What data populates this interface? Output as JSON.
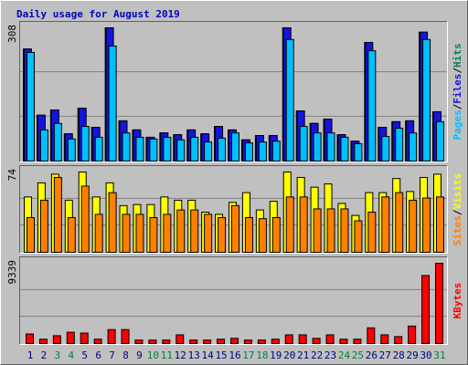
{
  "chart_data": [
    {
      "type": "bar",
      "title": "Daily usage for August 2019",
      "legend_separator": "/",
      "ylim": [
        0,
        308
      ],
      "yticks": [
        308
      ],
      "series": [
        {
          "name": "Hits",
          "color": "#00805c",
          "values": [
            259,
            106,
            118,
            63,
            122,
            78,
            308,
            93,
            72,
            55,
            65,
            61,
            72,
            63,
            80,
            72,
            49,
            59,
            59,
            308,
            116,
            87,
            97,
            61,
            46,
            274,
            78,
            91,
            93,
            298,
            114
          ]
        },
        {
          "name": "Files",
          "color": "#1414e0",
          "values": [
            259,
            106,
            118,
            63,
            122,
            78,
            308,
            93,
            72,
            55,
            65,
            61,
            72,
            63,
            80,
            72,
            49,
            59,
            59,
            308,
            116,
            87,
            97,
            61,
            46,
            274,
            78,
            91,
            93,
            298,
            114
          ]
        },
        {
          "name": "Pages",
          "color": "#00bfff",
          "values": [
            251,
            72,
            87,
            51,
            80,
            55,
            266,
            65,
            55,
            51,
            55,
            49,
            55,
            44,
            53,
            65,
            42,
            44,
            46,
            281,
            80,
            65,
            65,
            55,
            40,
            255,
            57,
            76,
            65,
            281,
            91
          ]
        }
      ]
    },
    {
      "type": "bar",
      "legend_separator": "/",
      "ylim": [
        0,
        74
      ],
      "yticks": [
        74
      ],
      "series": [
        {
          "name": "Visits",
          "color": "#ffff00",
          "values": [
            51,
            64,
            72,
            48,
            74,
            51,
            64,
            43,
            44,
            44,
            51,
            48,
            48,
            37,
            35,
            46,
            55,
            39,
            47,
            74,
            69,
            60,
            63,
            45,
            34,
            55,
            55,
            68,
            56,
            69,
            72
          ]
        },
        {
          "name": "Sites",
          "color": "#ff8000",
          "values": [
            32,
            48,
            69,
            32,
            61,
            35,
            55,
            35,
            35,
            32,
            35,
            39,
            39,
            35,
            32,
            43,
            32,
            31,
            32,
            51,
            51,
            40,
            40,
            40,
            29,
            37,
            51,
            55,
            48,
            50,
            51
          ]
        }
      ]
    },
    {
      "type": "bar",
      "ylim": [
        0,
        9339
      ],
      "yticks": [
        9339
      ],
      "categories": [
        "1",
        "2",
        "3",
        "4",
        "5",
        "6",
        "7",
        "8",
        "9",
        "10",
        "11",
        "12",
        "13",
        "14",
        "15",
        "16",
        "17",
        "18",
        "19",
        "20",
        "21",
        "22",
        "23",
        "24",
        "25",
        "26",
        "27",
        "28",
        "29",
        "30",
        "31"
      ],
      "category_colors": [
        "#000080",
        "#000080",
        "#008040",
        "#008040",
        "#000080",
        "#000080",
        "#000080",
        "#000080",
        "#000080",
        "#008040",
        "#008040",
        "#000080",
        "#000080",
        "#000080",
        "#000080",
        "#000080",
        "#008040",
        "#008040",
        "#000080",
        "#000080",
        "#000080",
        "#000080",
        "#000080",
        "#008040",
        "#008040",
        "#000080",
        "#000080",
        "#000080",
        "#000080",
        "#000080",
        "#008040"
      ],
      "series": [
        {
          "name": "KBytes",
          "color": "#ff0000",
          "values": [
            1117,
            508,
            914,
            1320,
            1218,
            508,
            1624,
            1624,
            406,
            406,
            406,
            1015,
            406,
            406,
            508,
            609,
            406,
            406,
            508,
            1015,
            1015,
            609,
            1015,
            508,
            508,
            1827,
            1015,
            812,
            2030,
            7917,
            9339
          ]
        }
      ]
    }
  ]
}
